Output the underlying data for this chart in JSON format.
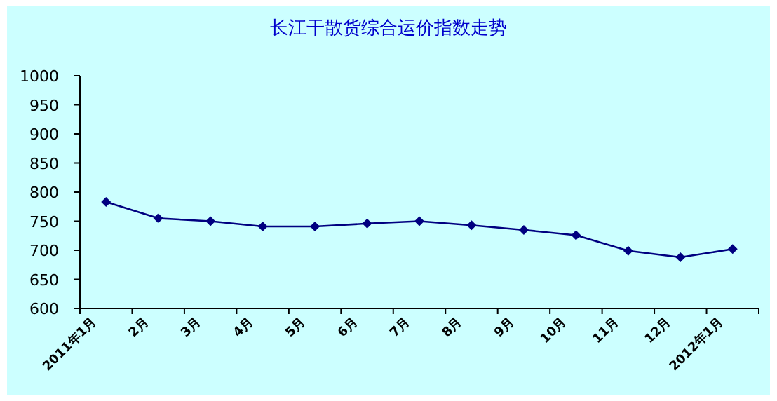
{
  "chart_data": {
    "type": "line",
    "title": "长江干散货综合运价指数走势",
    "categories": [
      "2011年1月",
      "2月",
      "3月",
      "4月",
      "5月",
      "6月",
      "7月",
      "8月",
      "9月",
      "10月",
      "11月",
      "12月",
      "2012年1月"
    ],
    "series": [
      {
        "color": "#000080",
        "values": [
          783,
          755,
          750,
          741,
          741,
          746,
          750,
          743,
          735,
          726,
          699,
          688,
          702
        ]
      }
    ],
    "ylim": [
      600,
      1000
    ],
    "yticks": [
      600,
      650,
      700,
      750,
      800,
      850,
      900,
      950,
      1000
    ],
    "marker": "diamond",
    "line_style": "solid",
    "grid": false
  }
}
